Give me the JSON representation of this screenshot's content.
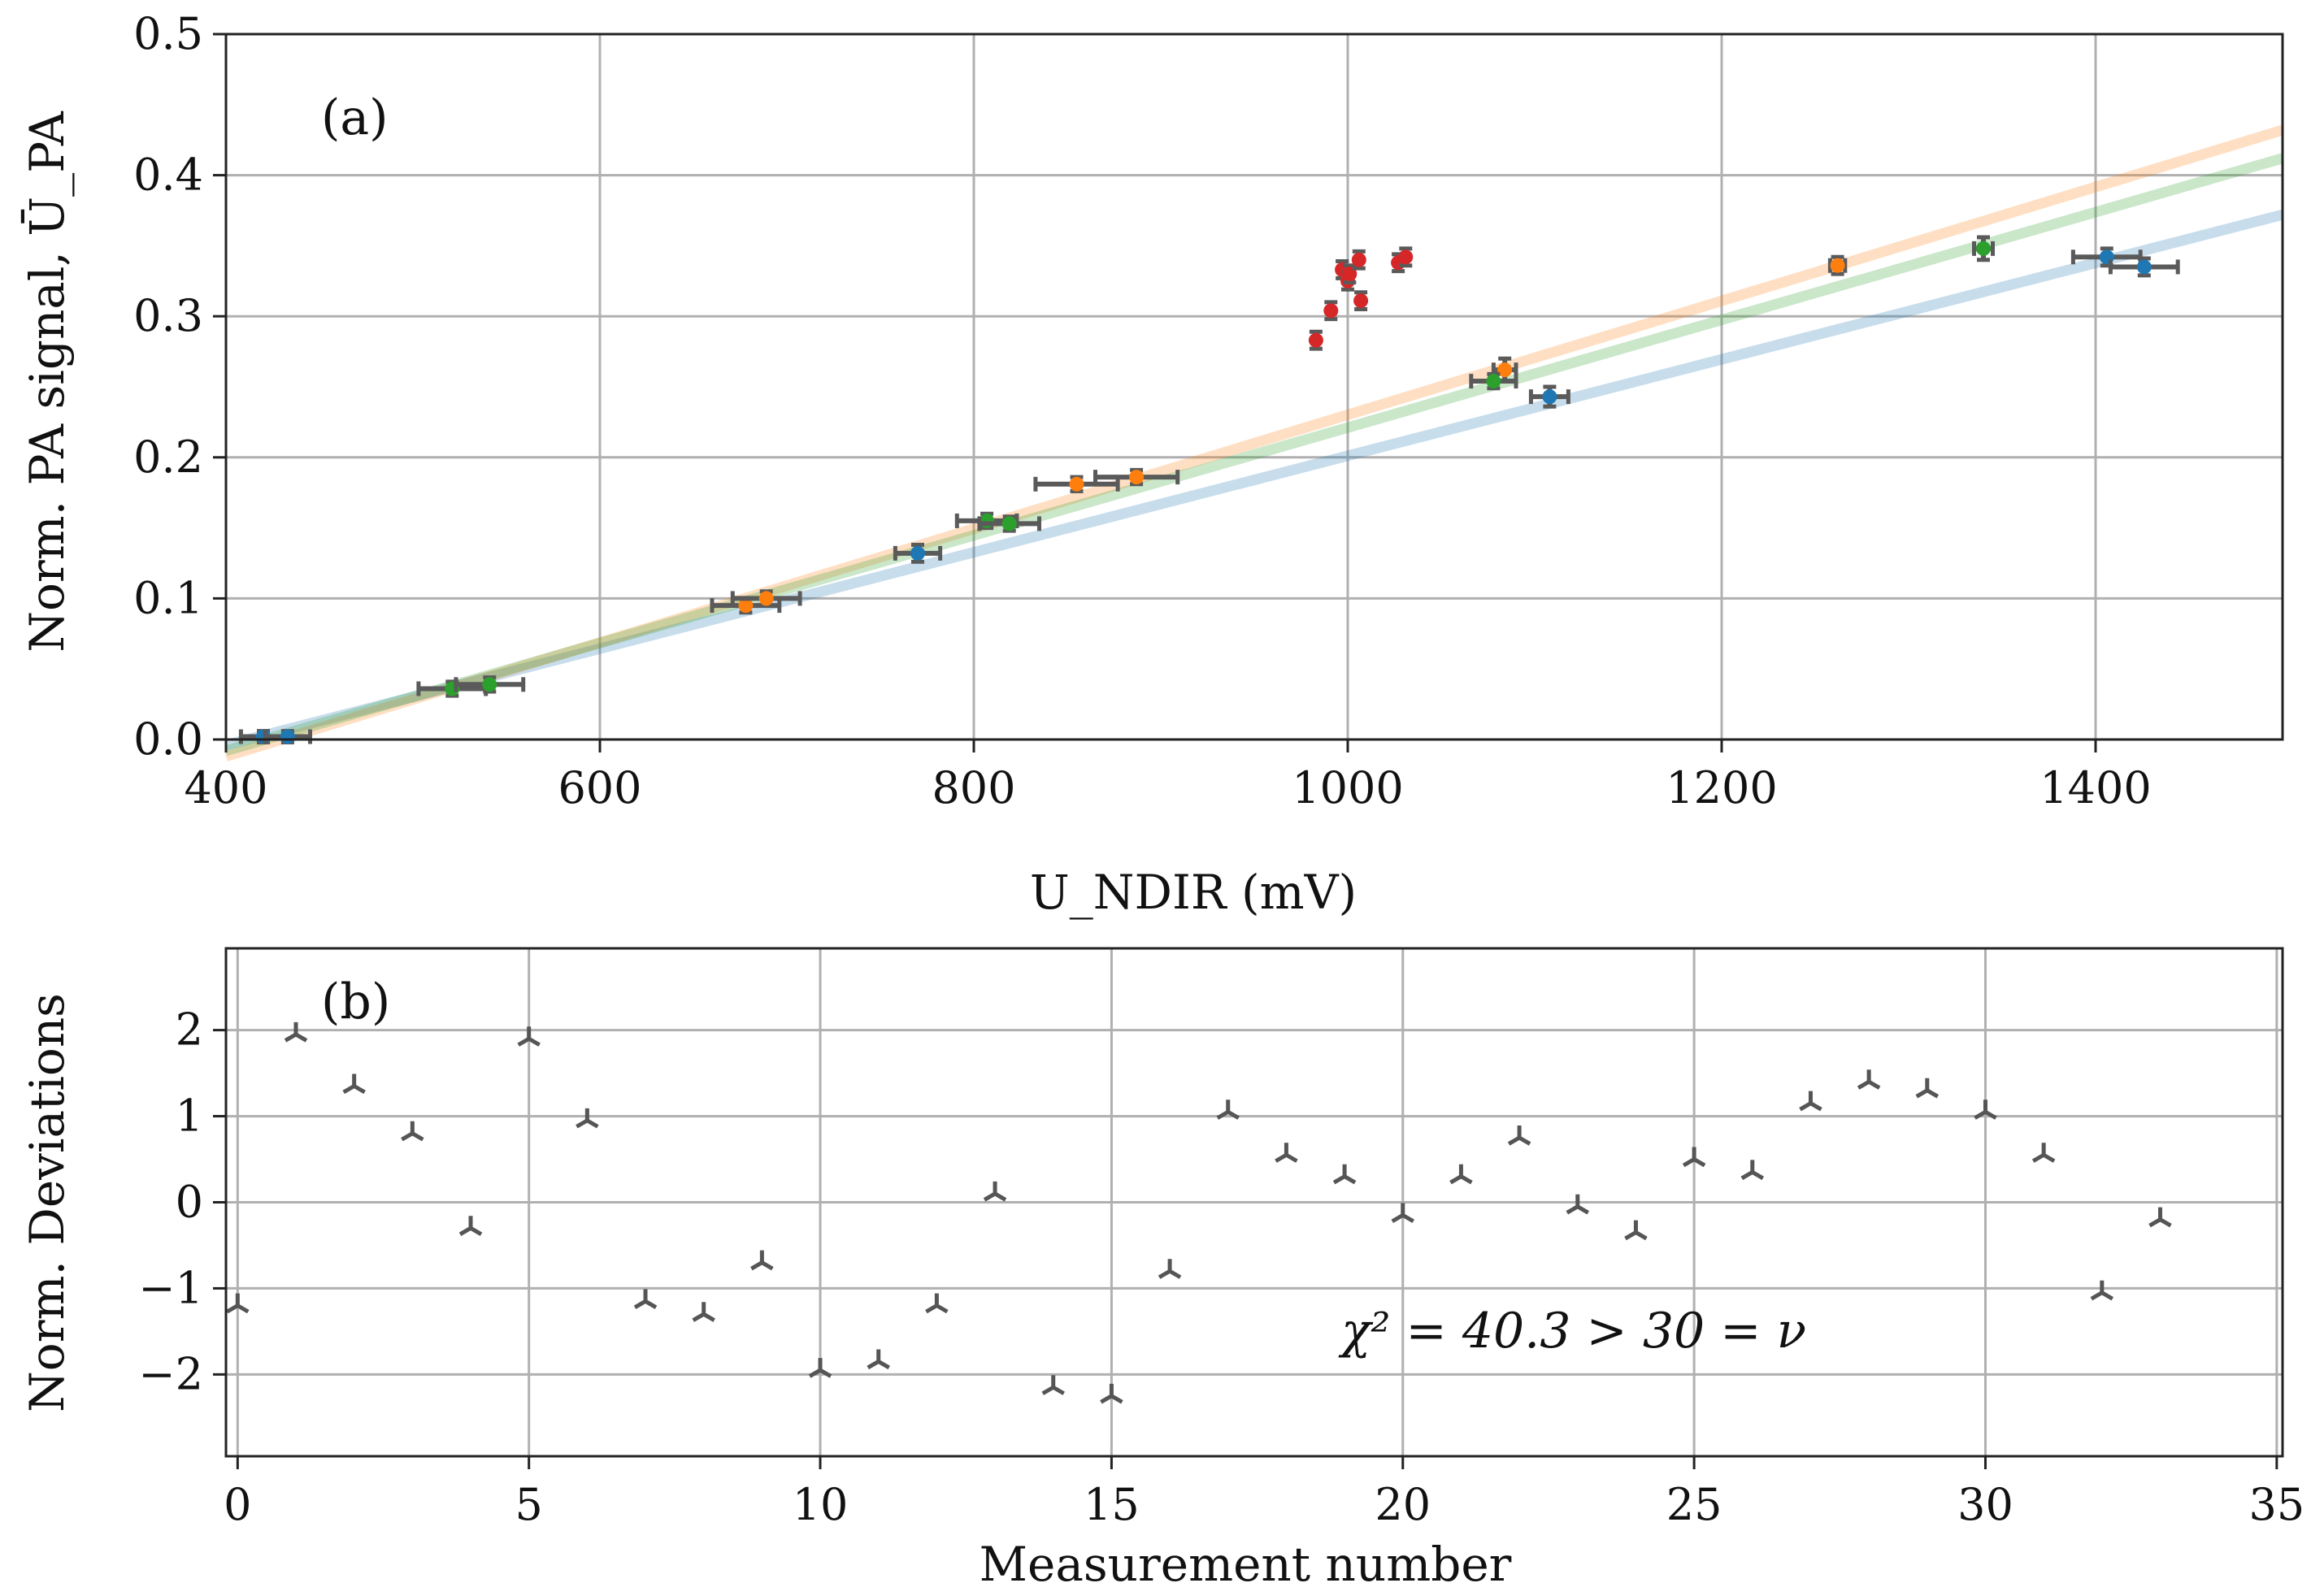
{
  "chart_data": [
    {
      "panel": "(a)",
      "type": "scatter",
      "title": "",
      "xlabel": "U_NDIR (mV)",
      "ylabel": "Norm. PA signal, Ū_PA",
      "xlim": [
        400,
        1500
      ],
      "ylim": [
        0.0,
        0.5
      ],
      "xticks": [
        "400",
        "600",
        "800",
        "1000",
        "1200",
        "1400"
      ],
      "yticks": [
        "0.0",
        "0.1",
        "0.2",
        "0.3",
        "0.4",
        "0.5"
      ],
      "grid": true,
      "colors": {
        "blue": "#1f77b4",
        "orange": "#ff7f0e",
        "green": "#2ca02c",
        "red": "#d62728",
        "errorbar": "#5a5a5a"
      },
      "fit_lines": [
        {
          "name": "blue fit",
          "color": "#1f77b4",
          "x": [
            400,
            1500
          ],
          "y": [
            -0.004,
            0.372
          ]
        },
        {
          "name": "orange fit",
          "color": "#ff7f0e",
          "x": [
            400,
            1500
          ],
          "y": [
            -0.012,
            0.432
          ]
        },
        {
          "name": "green fit",
          "color": "#2ca02c",
          "x": [
            400,
            1500
          ],
          "y": [
            -0.008,
            0.412
          ]
        }
      ],
      "series": [
        {
          "name": "blue",
          "color": "#1f77b4",
          "points": [
            {
              "x": 420,
              "y": 0.002,
              "xerr": 12,
              "yerr": 0.004
            },
            {
              "x": 433,
              "y": 0.002,
              "xerr": 12,
              "yerr": 0.004
            },
            {
              "x": 770,
              "y": 0.132,
              "xerr": 12,
              "yerr": 0.006
            },
            {
              "x": 1108,
              "y": 0.243,
              "xerr": 10,
              "yerr": 0.007
            },
            {
              "x": 1406,
              "y": 0.342,
              "xerr": 18,
              "yerr": 0.006
            },
            {
              "x": 1426,
              "y": 0.335,
              "xerr": 18,
              "yerr": 0.006
            }
          ]
        },
        {
          "name": "orange",
          "color": "#ff7f0e",
          "points": [
            {
              "x": 678,
              "y": 0.095,
              "xerr": 18,
              "yerr": 0.005
            },
            {
              "x": 689,
              "y": 0.1,
              "xerr": 18,
              "yerr": 0.005
            },
            {
              "x": 855,
              "y": 0.181,
              "xerr": 22,
              "yerr": 0.005
            },
            {
              "x": 887,
              "y": 0.186,
              "xerr": 22,
              "yerr": 0.005
            },
            {
              "x": 1084,
              "y": 0.262,
              "xerr": 6,
              "yerr": 0.008
            },
            {
              "x": 1262,
              "y": 0.336,
              "xerr": 4,
              "yerr": 0.006
            }
          ]
        },
        {
          "name": "green",
          "color": "#2ca02c",
          "points": [
            {
              "x": 521,
              "y": 0.036,
              "xerr": 18,
              "yerr": 0.005
            },
            {
              "x": 541,
              "y": 0.039,
              "xerr": 18,
              "yerr": 0.005
            },
            {
              "x": 807,
              "y": 0.155,
              "xerr": 16,
              "yerr": 0.005
            },
            {
              "x": 819,
              "y": 0.153,
              "xerr": 16,
              "yerr": 0.005
            },
            {
              "x": 1078,
              "y": 0.254,
              "xerr": 12,
              "yerr": 0.005
            },
            {
              "x": 1340,
              "y": 0.348,
              "xerr": 5,
              "yerr": 0.008
            }
          ]
        },
        {
          "name": "red",
          "color": "#d62728",
          "points": [
            {
              "x": 983,
              "y": 0.283,
              "xerr": 0,
              "yerr": 0.006
            },
            {
              "x": 991,
              "y": 0.304,
              "xerr": 0,
              "yerr": 0.006
            },
            {
              "x": 997,
              "y": 0.333,
              "xerr": 0,
              "yerr": 0.006
            },
            {
              "x": 1000,
              "y": 0.325,
              "xerr": 0,
              "yerr": 0.006
            },
            {
              "x": 1001,
              "y": 0.33,
              "xerr": 0,
              "yerr": 0.006
            },
            {
              "x": 1006,
              "y": 0.34,
              "xerr": 0,
              "yerr": 0.006
            },
            {
              "x": 1007,
              "y": 0.311,
              "xerr": 0,
              "yerr": 0.006
            },
            {
              "x": 1027,
              "y": 0.338,
              "xerr": 0,
              "yerr": 0.006
            },
            {
              "x": 1031,
              "y": 0.342,
              "xerr": 0,
              "yerr": 0.006
            }
          ]
        }
      ]
    },
    {
      "panel": "(b)",
      "type": "scatter",
      "title": "",
      "xlabel": "Measurement number",
      "ylabel": "Norm. Deviations",
      "xlim": [
        -0.2,
        35.1
      ],
      "ylim": [
        -2.95,
        2.95
      ],
      "xticks": [
        "0",
        "5",
        "10",
        "15",
        "20",
        "25",
        "30",
        "35"
      ],
      "yticks": [
        "−2",
        "−1",
        "0",
        "1",
        "2"
      ],
      "grid": true,
      "marker": "tri",
      "marker_color": "#555555",
      "annotation": "χ² = 40.3 > 30 = ν",
      "x": [
        0,
        1,
        2,
        3,
        4,
        5,
        6,
        7,
        8,
        9,
        10,
        11,
        12,
        13,
        14,
        15,
        16,
        17,
        18,
        19,
        20,
        21,
        22,
        23,
        24,
        25,
        26,
        27,
        28,
        29,
        30,
        31,
        32,
        33
      ],
      "values": [
        -1.2,
        1.95,
        1.35,
        0.8,
        -0.3,
        1.9,
        0.95,
        -1.15,
        -1.3,
        -0.7,
        -1.95,
        -1.85,
        -1.2,
        0.1,
        -2.15,
        -2.25,
        -0.8,
        1.05,
        0.55,
        0.3,
        -0.15,
        0.3,
        0.75,
        -0.05,
        -0.35,
        0.5,
        0.35,
        1.15,
        1.4,
        1.3,
        1.05,
        0.55,
        -1.05,
        -0.2
      ]
    }
  ]
}
